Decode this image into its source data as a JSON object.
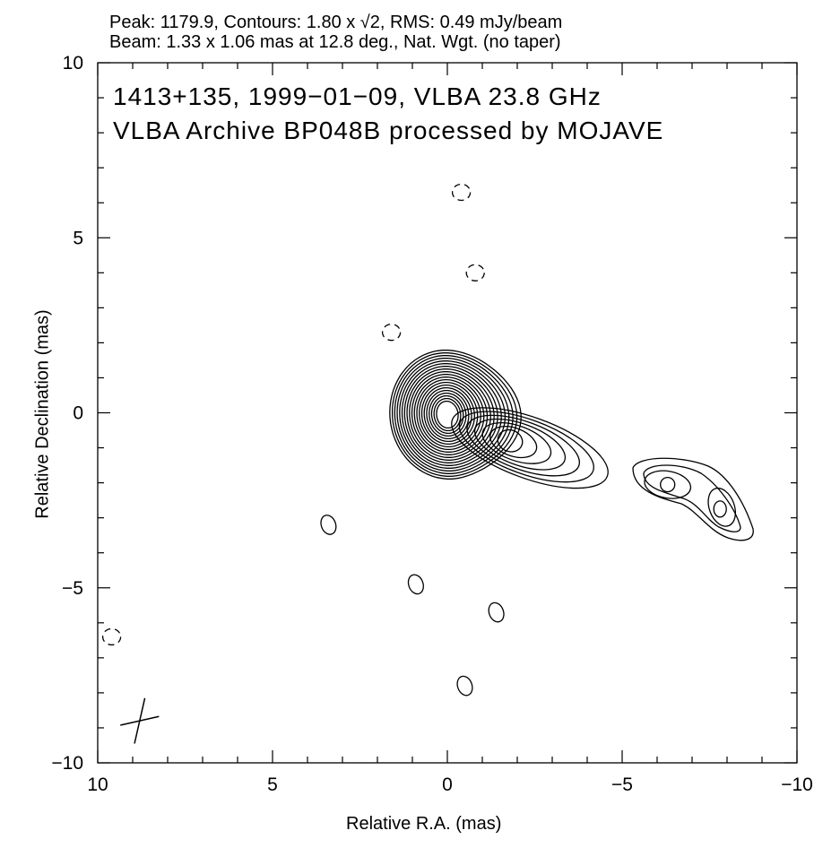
{
  "chart_data": {
    "type": "contour",
    "header_line1": "Peak: 1179.9, Contours: 1.80 x √2, RMS: 0.49 mJy/beam",
    "header_line2": "Beam: 1.33 x 1.06 mas at 12.8 deg., Nat. Wgt. (no taper)",
    "annotation_line1": "1413+135, 1999−01−09, VLBA 23.8 GHz",
    "annotation_line2": "VLBA Archive BP048B processed by MOJAVE",
    "xlabel": "Relative R.A. (mas)",
    "ylabel": "Relative Declination (mas)",
    "xlim": [
      10,
      -10
    ],
    "ylim": [
      -10,
      10
    ],
    "xticks": [
      10,
      5,
      0,
      -5,
      -10
    ],
    "yticks": [
      -10,
      -5,
      0,
      5,
      10
    ],
    "xtick_labels": [
      "10",
      "5",
      "0",
      "−5",
      "−10"
    ],
    "ytick_labels": [
      "−10",
      "−5",
      "0",
      "5",
      "10"
    ],
    "peak_mJy_per_beam": 1179.9,
    "base_contour_mJy": 1.8,
    "contour_factor": "√2",
    "rms_mJy_per_beam": 0.49,
    "beam": {
      "major_mas": 1.33,
      "minor_mas": 1.06,
      "pa_deg": 12.8,
      "center": [
        8.8,
        -8.8
      ]
    },
    "core": {
      "x": 0.0,
      "y": 0.0,
      "levels": 20
    },
    "jet_components": [
      {
        "name": "inner-jet",
        "x": -2.0,
        "y": -0.8,
        "levels": 7
      },
      {
        "name": "outer-jet-a",
        "x": -6.3,
        "y": -2.0,
        "levels": 3
      },
      {
        "name": "outer-jet-b",
        "x": -7.8,
        "y": -2.8,
        "levels": 3
      }
    ],
    "isolated_contours": [
      {
        "x": -0.4,
        "y": 6.3,
        "style": "dashed"
      },
      {
        "x": -0.8,
        "y": 4.0,
        "style": "dashed"
      },
      {
        "x": 1.6,
        "y": 2.3,
        "style": "dashed"
      },
      {
        "x": 3.4,
        "y": -3.2,
        "style": "solid"
      },
      {
        "x": 0.9,
        "y": -4.9,
        "style": "solid"
      },
      {
        "x": -1.4,
        "y": -5.7,
        "style": "solid"
      },
      {
        "x": -0.5,
        "y": -7.8,
        "style": "solid"
      },
      {
        "x": 9.6,
        "y": -6.4,
        "style": "dashed"
      }
    ]
  }
}
